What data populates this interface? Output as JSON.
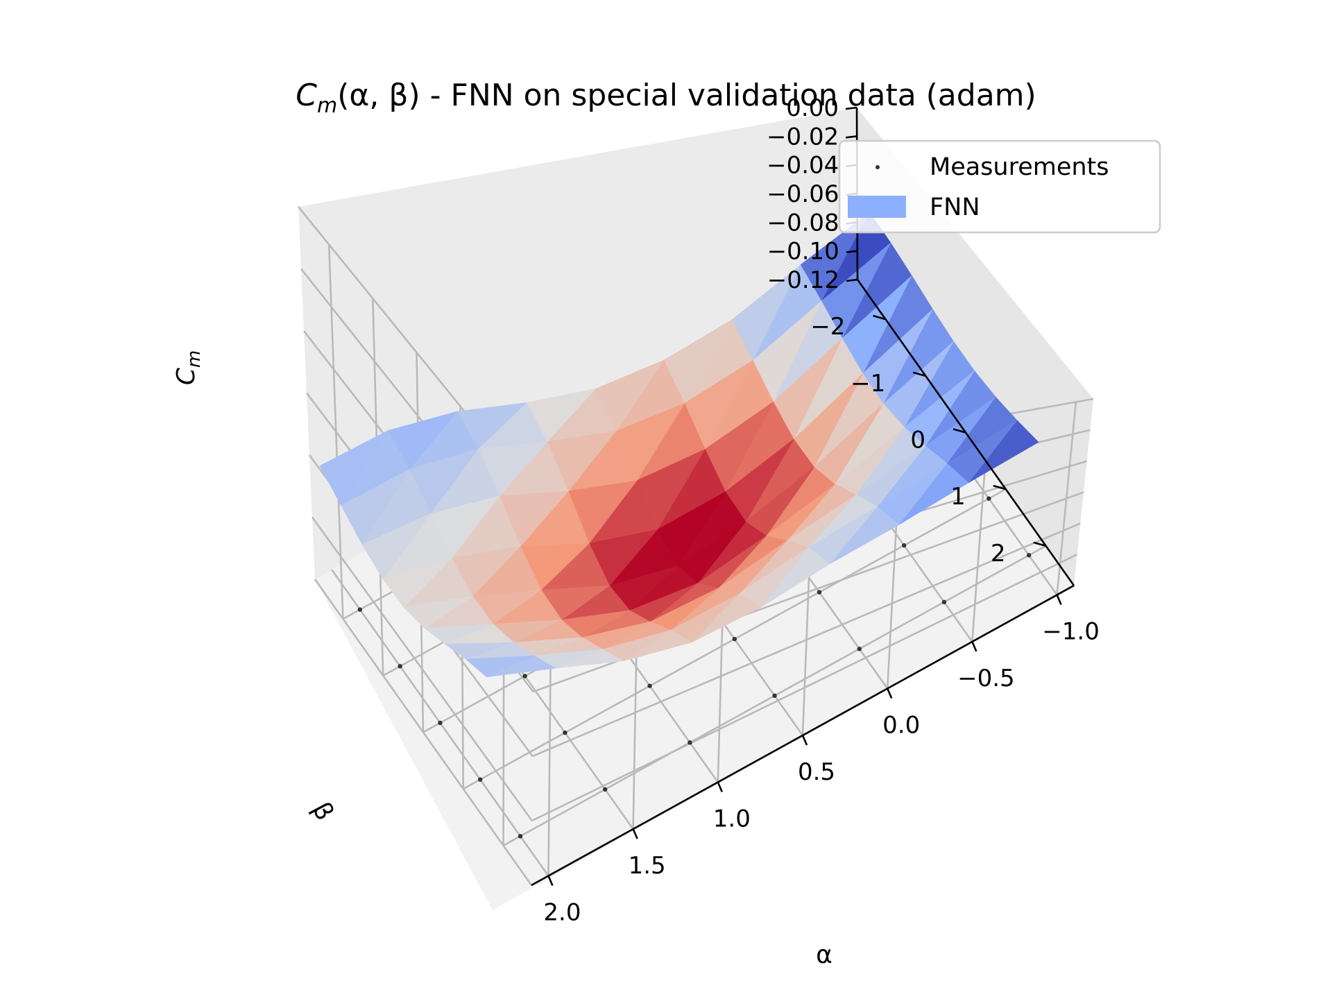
{
  "chart_data": {
    "type": "surface3d",
    "title": "C_m(α, β) - FNN on special validation data (adam)",
    "title_parts": {
      "sym": "C",
      "sub": "m",
      "rest": "(α, β) - FNN on special validation data (adam)"
    },
    "xlabel": "α",
    "ylabel": "β",
    "zlabel": "C_m",
    "zlabel_parts": {
      "sym": "C",
      "sub": "m"
    },
    "x_ticks": [
      "−1.0",
      "−0.5",
      "0.0",
      "0.5",
      "1.0",
      "1.5",
      "2.0"
    ],
    "y_ticks": [
      "−2",
      "−1",
      "0",
      "1",
      "2"
    ],
    "z_ticks": [
      "0.00",
      "−0.02",
      "−0.04",
      "−0.06",
      "−0.08",
      "−0.10",
      "−0.12"
    ],
    "xlim": [
      -1.1,
      2.1
    ],
    "ylim": [
      -2.7,
      2.7
    ],
    "zlim": [
      -0.12,
      0.0
    ],
    "colormap": "coolwarm",
    "colors": {
      "low": "#3b4cc0",
      "mid": "#dddddd",
      "high": "#b40426",
      "legend_patch": "#8db0fe",
      "points": "#333333"
    },
    "legend": {
      "placement": "top-right",
      "entries": [
        {
          "label": "Measurements",
          "marker": "dot"
        },
        {
          "label": "FNN",
          "marker": "patch"
        }
      ]
    },
    "grid": true,
    "surface_alpha": [
      -1.0,
      -0.6,
      -0.2,
      0.2,
      0.6,
      1.0,
      1.4,
      1.8,
      2.2
    ],
    "surface_beta": [
      -2.0,
      -1.5,
      -1.0,
      -0.5,
      0.0,
      0.5,
      1.0,
      1.5,
      2.0
    ],
    "measurements_alpha": [
      -1.0,
      -0.5,
      0.0,
      0.5,
      1.0,
      1.5,
      2.0
    ],
    "measurements_beta": [
      -2.0,
      -1.0,
      0.0,
      1.0,
      2.0
    ]
  }
}
